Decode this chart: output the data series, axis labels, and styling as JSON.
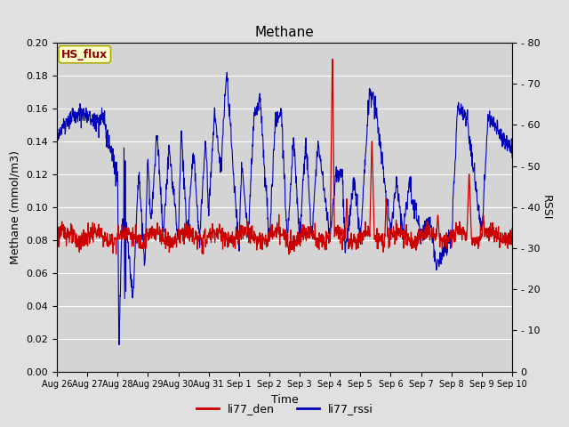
{
  "title": "Methane",
  "xlabel": "Time",
  "ylabel_left": "Methane (mmol/m3)",
  "ylabel_right": "RSSI",
  "ylim_left": [
    0.0,
    0.2
  ],
  "ylim_right": [
    0,
    80
  ],
  "yticks_left": [
    0.0,
    0.02,
    0.04,
    0.06,
    0.08,
    0.1,
    0.12,
    0.14,
    0.16,
    0.18,
    0.2
  ],
  "yticks_right_vals": [
    0,
    10,
    20,
    30,
    40,
    50,
    60,
    70,
    80
  ],
  "yticks_right_labels": [
    "0",
    "- 10",
    "- 20",
    "- 30",
    "- 40",
    "- 50",
    "- 60",
    "- 70",
    "- 80"
  ],
  "background_color": "#e0e0e0",
  "plot_bg_color": "#d4d4d4",
  "line_color_red": "#cc0000",
  "line_color_blue": "#0000bb",
  "legend_labels": [
    "li77_den",
    "li77_rssi"
  ],
  "annotation_text": "HS_flux",
  "annotation_color": "#8b0000",
  "annotation_bg": "#ffffcc",
  "x_tick_labels": [
    "Aug 26",
    "Aug 27",
    "Aug 28",
    "Aug 29",
    "Aug 30",
    "Aug 31",
    "Sep 1",
    "Sep 2",
    "Sep 3",
    "Sep 4",
    "Sep 5",
    "Sep 6",
    "Sep 7",
    "Sep 8",
    "Sep 9",
    "Sep 10"
  ],
  "title_fontsize": 11,
  "axis_label_fontsize": 9,
  "tick_label_fontsize": 8
}
